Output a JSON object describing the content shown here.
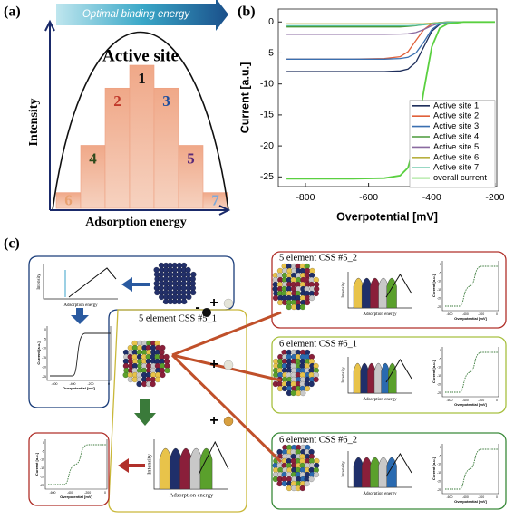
{
  "chart_data": [
    {
      "type": "bar",
      "label": "(a)",
      "banner": "Optimal binding energy",
      "annotation": "Active site",
      "y_label": "Intensity",
      "x_label": "Adsorption energy",
      "categories": [
        "6",
        "4",
        "2",
        "1",
        "3",
        "5",
        "7"
      ],
      "values": [
        11,
        44,
        84,
        100,
        84,
        44,
        11
      ],
      "ylim": [
        0,
        100
      ],
      "color": "#eda080",
      "label_colors": [
        "#e8a070",
        "#2f4a1c",
        "#c0392b",
        "#111111",
        "#1f4e9c",
        "#5a2a78",
        "#7fa8d8"
      ]
    },
    {
      "type": "line",
      "label": "(b)",
      "x_label": "Overpotential [mV]",
      "y_label": "Current [a.u.]",
      "x": [
        -860,
        -800,
        -650,
        -550,
        -500,
        -475,
        -450,
        -425,
        -400,
        -375,
        -350,
        -300,
        -250,
        -200
      ],
      "series": [
        {
          "name": "Active site 1",
          "color": "#1f2f5c",
          "values": [
            -8,
            -8,
            -8,
            -8,
            -7.9,
            -7.6,
            -6.5,
            -4,
            -1.5,
            -0.4,
            -0.1,
            0,
            0,
            0
          ]
        },
        {
          "name": "Active site 2",
          "color": "#e0603a",
          "values": [
            -6,
            -6,
            -6,
            -5.9,
            -5.6,
            -4.8,
            -3,
            -1.2,
            -0.3,
            -0.1,
            0,
            0,
            0,
            0
          ]
        },
        {
          "name": "Active site 3",
          "color": "#3a6fb0",
          "values": [
            -6,
            -6,
            -6,
            -6,
            -5.9,
            -5.7,
            -5,
            -3.2,
            -1.2,
            -0.3,
            -0.1,
            0,
            0,
            0
          ]
        },
        {
          "name": "Active site 4",
          "color": "#4a9a3a",
          "values": [
            -0.8,
            -0.8,
            -0.8,
            -0.8,
            -0.8,
            -0.7,
            -0.6,
            -0.4,
            -0.2,
            -0.1,
            0,
            0,
            0,
            0
          ]
        },
        {
          "name": "Active site 5",
          "color": "#8a6aa0",
          "values": [
            -2,
            -2,
            -2,
            -2,
            -1.95,
            -1.9,
            -1.7,
            -1.2,
            -0.6,
            -0.2,
            -0.1,
            0,
            0,
            0
          ]
        },
        {
          "name": "Active site 6",
          "color": "#b8b040",
          "values": [
            -0.3,
            -0.3,
            -0.3,
            -0.3,
            -0.3,
            -0.3,
            -0.3,
            -0.28,
            -0.2,
            -0.1,
            -0.05,
            0,
            0,
            0
          ]
        },
        {
          "name": "Active site 7",
          "color": "#5ac0a0",
          "values": [
            -0.6,
            -0.6,
            -0.6,
            -0.6,
            -0.6,
            -0.6,
            -0.55,
            -0.45,
            -0.3,
            -0.15,
            -0.05,
            0,
            0,
            0
          ]
        },
        {
          "name": "overall current",
          "color": "#5ad040",
          "values": [
            -25.3,
            -25.3,
            -25.3,
            -25.2,
            -24.8,
            -23.5,
            -19,
            -11,
            -4,
            -1,
            -0.3,
            0,
            0,
            0
          ]
        }
      ],
      "xlim": [
        -886,
        -194
      ],
      "ylim": [
        -27,
        1.5
      ],
      "xticks": [
        -800,
        -600,
        -400,
        -200
      ],
      "yticks": [
        0,
        -5,
        -10,
        -15,
        -20,
        -25
      ],
      "legend": "lower right"
    }
  ],
  "diagram": {
    "label": "(c)",
    "center_title": "5 element CSS #5_1",
    "outputs": [
      "5 element CSS #5_2",
      "6 element CSS #6_1",
      "6 element CSS #6_2"
    ],
    "signs": [
      "-",
      "+",
      "+",
      "+"
    ],
    "intensity": "Intensity",
    "adsorption": "Adsorption energy",
    "current": "Current [a.u.]",
    "overpotential": "Overpotential [mV]",
    "mini_xticks": [
      "-600",
      "-400",
      "-200",
      "0"
    ],
    "mini_yticks": [
      "0",
      "-5",
      "-10",
      "-15",
      "-20",
      "-25"
    ]
  }
}
